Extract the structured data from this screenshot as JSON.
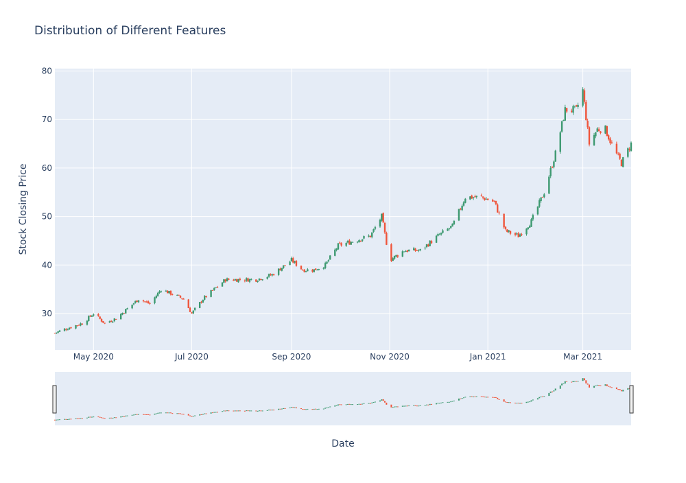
{
  "chart_data": {
    "type": "candlestick",
    "title": "Distribution of Different Features",
    "xlabel": "Date",
    "ylabel": "Stock Closing Price",
    "ylim": [
      22.5,
      80.5
    ],
    "xlim": [
      "2020-04-07",
      "2021-03-31"
    ],
    "y_ticks": [
      30,
      40,
      50,
      60,
      70,
      80
    ],
    "x_ticks": [
      {
        "date": "2020-05-01",
        "label": "May 2020"
      },
      {
        "date": "2020-07-01",
        "label": "Jul 2020"
      },
      {
        "date": "2020-09-01",
        "label": "Sep 2020"
      },
      {
        "date": "2020-11-01",
        "label": "Nov 2020"
      },
      {
        "date": "2021-01-01",
        "label": "Jan 2021"
      },
      {
        "date": "2021-03-01",
        "label": "Mar 2021"
      }
    ],
    "grid": true,
    "rangeslider": true,
    "colors": {
      "increasing": "#3d9970",
      "decreasing": "#ef553b",
      "plot_bg": "#e5ecf6",
      "grid": "#ffffff",
      "text": "#2a3f5f"
    },
    "anchors": [
      [
        "2020-04-07",
        26
      ],
      [
        "2020-04-15",
        27
      ],
      [
        "2020-04-24",
        28
      ],
      [
        "2020-05-01",
        30
      ],
      [
        "2020-05-08",
        28
      ],
      [
        "2020-05-15",
        29
      ],
      [
        "2020-05-22",
        31
      ],
      [
        "2020-05-29",
        33
      ],
      [
        "2020-06-05",
        32
      ],
      [
        "2020-06-12",
        35
      ],
      [
        "2020-06-19",
        34
      ],
      [
        "2020-06-26",
        33
      ],
      [
        "2020-07-01",
        30
      ],
      [
        "2020-07-08",
        33
      ],
      [
        "2020-07-15",
        35
      ],
      [
        "2020-07-22",
        37
      ],
      [
        "2020-07-31",
        37
      ],
      [
        "2020-08-10",
        37
      ],
      [
        "2020-08-20",
        38
      ],
      [
        "2020-09-01",
        41
      ],
      [
        "2020-09-08",
        39
      ],
      [
        "2020-09-15",
        39
      ],
      [
        "2020-09-22",
        40
      ],
      [
        "2020-09-30",
        44
      ],
      [
        "2020-10-10",
        45
      ],
      [
        "2020-10-20",
        46
      ],
      [
        "2020-10-27",
        50
      ],
      [
        "2020-11-01",
        41
      ],
      [
        "2020-11-10",
        43
      ],
      [
        "2020-11-20",
        43
      ],
      [
        "2020-12-01",
        46
      ],
      [
        "2020-12-10",
        48
      ],
      [
        "2020-12-18",
        54
      ],
      [
        "2020-12-28",
        54
      ],
      [
        "2021-01-05",
        53
      ],
      [
        "2021-01-12",
        47
      ],
      [
        "2021-01-20",
        46
      ],
      [
        "2021-01-28",
        49
      ],
      [
        "2021-02-05",
        55
      ],
      [
        "2021-02-12",
        63
      ],
      [
        "2021-02-18",
        72
      ],
      [
        "2021-02-25",
        72
      ],
      [
        "2021-03-01",
        76
      ],
      [
        "2021-03-05",
        65
      ],
      [
        "2021-03-10",
        68
      ],
      [
        "2021-03-15",
        68
      ],
      [
        "2021-03-20",
        64
      ],
      [
        "2021-03-25",
        61
      ],
      [
        "2021-03-31",
        65
      ]
    ]
  }
}
